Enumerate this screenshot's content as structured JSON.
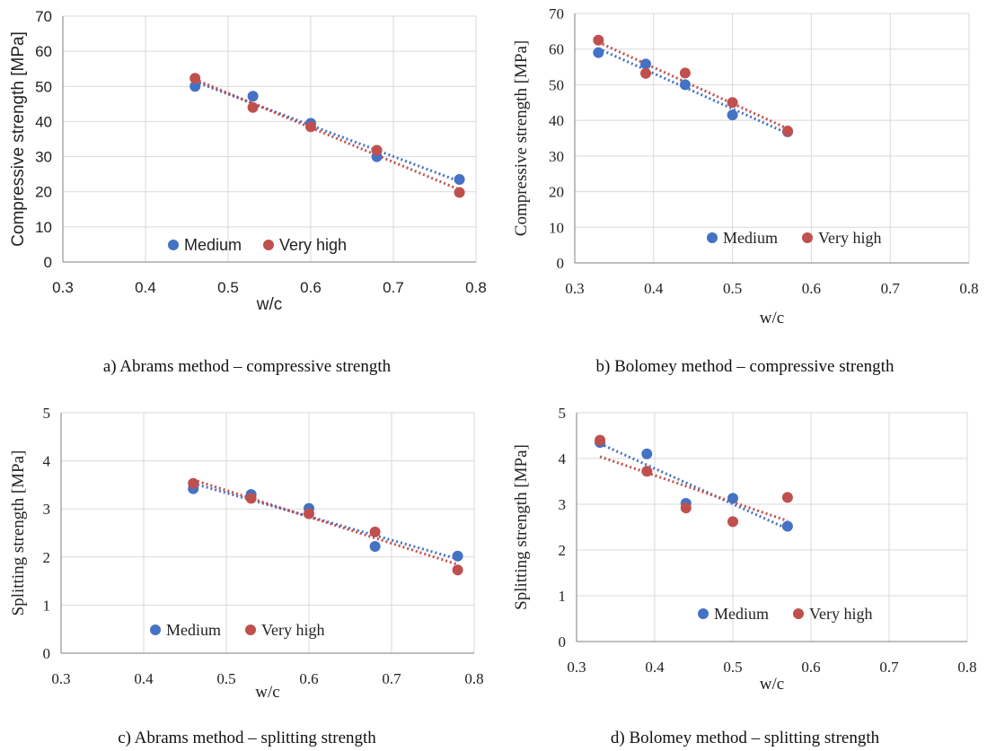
{
  "colors": {
    "medium": "#4472c4",
    "very_high": "#c0504d",
    "grid": "#d9d9d9",
    "axis": "#7f7f7f"
  },
  "chart_data": [
    {
      "type": "scatter",
      "caption": "a) Abrams method – compressive strength",
      "xlabel": "w/c",
      "ylabel": "Compressive strength [MPa]",
      "xlim": [
        0.3,
        0.8
      ],
      "ylim": [
        0,
        70
      ],
      "xticks": [
        "0.3",
        "0.4",
        "0.5",
        "0.6",
        "0.7",
        "0.8"
      ],
      "yticks": [
        "0",
        "10",
        "20",
        "30",
        "40",
        "50",
        "60",
        "70"
      ],
      "grid": true,
      "trendline": "linear",
      "legend": "bottom-center",
      "series": [
        {
          "name": "Medium",
          "x": [
            0.46,
            0.53,
            0.6,
            0.68,
            0.78
          ],
          "y": [
            50.0,
            47.2,
            39.5,
            30.0,
            23.5
          ]
        },
        {
          "name": "Very high",
          "x": [
            0.46,
            0.53,
            0.6,
            0.68,
            0.78
          ],
          "y": [
            52.3,
            44.0,
            38.5,
            31.8,
            19.8
          ]
        }
      ]
    },
    {
      "type": "scatter",
      "caption": "b) Bolomey method – compressive strength",
      "xlabel": "w/c",
      "ylabel": "Compressive strength [MPa]",
      "xlim": [
        0.3,
        0.8
      ],
      "ylim": [
        0,
        70
      ],
      "xticks": [
        "0.3",
        "0.4",
        "0.5",
        "0.6",
        "0.7",
        "0.8"
      ],
      "yticks": [
        "0",
        "10",
        "20",
        "30",
        "40",
        "50",
        "60",
        "70"
      ],
      "grid": true,
      "trendline": "linear",
      "legend": "bottom-center",
      "series": [
        {
          "name": "Medium",
          "x": [
            0.33,
            0.39,
            0.44,
            0.5,
            0.57
          ],
          "y": [
            59.0,
            55.8,
            50.0,
            41.5,
            36.8
          ]
        },
        {
          "name": "Very high",
          "x": [
            0.33,
            0.39,
            0.44,
            0.5,
            0.57
          ],
          "y": [
            62.5,
            53.2,
            53.3,
            45.0,
            37.0
          ]
        }
      ]
    },
    {
      "type": "scatter",
      "caption": "c) Abrams method – splitting strength",
      "xlabel": "w/c",
      "ylabel": "Splitting strength [MPa]",
      "xlim": [
        0.3,
        0.8
      ],
      "ylim": [
        0,
        5
      ],
      "xticks": [
        "0.3",
        "0.4",
        "0.5",
        "0.6",
        "0.7",
        "0.8"
      ],
      "yticks": [
        "0",
        "1",
        "2",
        "3",
        "4",
        "5"
      ],
      "grid": true,
      "trendline": "linear",
      "legend": "bottom-center",
      "series": [
        {
          "name": "Medium",
          "x": [
            0.46,
            0.53,
            0.6,
            0.68,
            0.78
          ],
          "y": [
            3.42,
            3.3,
            3.01,
            2.22,
            2.02
          ]
        },
        {
          "name": "Very high",
          "x": [
            0.46,
            0.53,
            0.6,
            0.68,
            0.78
          ],
          "y": [
            3.53,
            3.22,
            2.9,
            2.52,
            1.73
          ]
        }
      ]
    },
    {
      "type": "scatter",
      "caption": "d) Bolomey method – splitting strength",
      "xlabel": "w/c",
      "ylabel": "Splitting strength [MPa]",
      "xlim": [
        0.3,
        0.8
      ],
      "ylim": [
        0,
        5
      ],
      "xticks": [
        "0.3",
        "0.4",
        "0.5",
        "0.6",
        "0.7",
        "0.8"
      ],
      "yticks": [
        "0",
        "1",
        "2",
        "3",
        "4",
        "5"
      ],
      "grid": true,
      "trendline": "linear",
      "legend": "bottom-center",
      "series": [
        {
          "name": "Medium",
          "x": [
            0.33,
            0.39,
            0.44,
            0.5,
            0.57
          ],
          "y": [
            4.35,
            4.1,
            3.02,
            3.13,
            2.52
          ]
        },
        {
          "name": "Very high",
          "x": [
            0.33,
            0.39,
            0.44,
            0.5,
            0.57
          ],
          "y": [
            4.4,
            3.72,
            2.92,
            2.62,
            3.15
          ]
        }
      ]
    }
  ]
}
